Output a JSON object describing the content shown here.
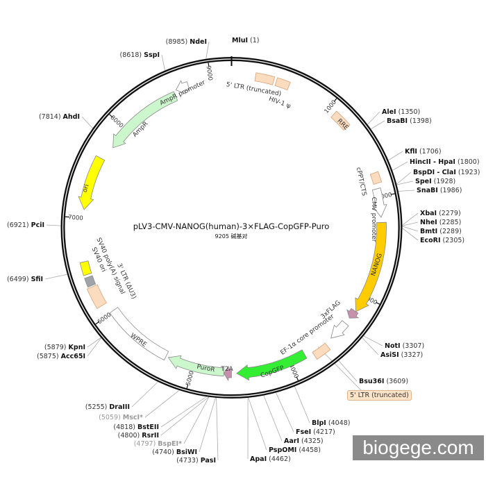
{
  "plasmid": {
    "title": "pLV3-CMV-NANOG(human)-3×FLAG-CopGFP-Puro",
    "subtitle": "9205 碱基对",
    "total_bp": 9205,
    "tick_labels": [
      "1000",
      "2000",
      "3000",
      "4000",
      "5000",
      "6000",
      "7000",
      "8000",
      "9000"
    ]
  },
  "features": [
    {
      "name": "5' LTR (truncated)",
      "start": 230,
      "end": 409,
      "type": "box",
      "color": "#fbdcbf"
    },
    {
      "name": "HIV-1 ψ",
      "start": 435,
      "end": 563,
      "type": "box",
      "color": "#fbdcbf"
    },
    {
      "name": "RRE",
      "start": 1074,
      "end": 1253,
      "type": "box",
      "color": "#fbdcbf"
    },
    {
      "name": "cPPT/CTS",
      "start": 1764,
      "end": 1867,
      "type": "box",
      "color": "#fbdcbf"
    },
    {
      "name": "CMV promoter",
      "start": 1918,
      "end": 2199,
      "type": "arrow",
      "dir": "cw",
      "color": "#ffffff"
    },
    {
      "name": "NANOG",
      "start": 2250,
      "end": 3171,
      "type": "arrow",
      "dir": "cw",
      "color": "#ffcc00"
    },
    {
      "name": "3xFLAG",
      "start": 3171,
      "end": 3260,
      "type": "arrow",
      "dir": "cw",
      "color": "#c690ad"
    },
    {
      "name": "EF-1α core promoter",
      "start": 3324,
      "end": 3529,
      "type": "arrow",
      "dir": "cw",
      "color": "#ffffff"
    },
    {
      "name": "5' LTR (truncated)",
      "start": 3605,
      "end": 3759,
      "type": "box",
      "color": "#fbdcbf"
    },
    {
      "name": "CopGFP",
      "start": 3836,
      "end": 4551,
      "type": "arrow",
      "dir": "cw",
      "color": "#33ee33"
    },
    {
      "name": "T2A",
      "start": 4603,
      "end": 4680,
      "type": "arrow",
      "dir": "cw",
      "color": "#c690ad"
    },
    {
      "name": "PuroR",
      "start": 4680,
      "end": 5267,
      "type": "arrow",
      "dir": "cw",
      "color": "#ccf7cc"
    },
    {
      "name": "WPRE",
      "start": 5293,
      "end": 6009,
      "type": "box",
      "color": "#ffffff"
    },
    {
      "name": "3' LTR (ΔU3)",
      "start": 6111,
      "end": 6316,
      "type": "box",
      "color": "#fbdcbf"
    },
    {
      "name": "SV40 ori",
      "start": 6329,
      "end": 6418,
      "type": "box",
      "color": "#a0a4a8"
    },
    {
      "name": "SV40 poly(A) signal",
      "start": 6444,
      "end": 6571,
      "type": "box",
      "color": "#ffff00"
    },
    {
      "name": "ori",
      "start": 7083,
      "end": 7620,
      "type": "arrow",
      "dir": "ccw",
      "color": "#ffff00"
    },
    {
      "name": "AmpR",
      "start": 7773,
      "end": 8617,
      "type": "arrow",
      "dir": "ccw",
      "color": "#ccf7cc"
    },
    {
      "name": "AmpR promoter",
      "start": 8643,
      "end": 8771,
      "type": "arrow",
      "dir": "ccw",
      "color": "#ffffff"
    }
  ],
  "sites": [
    {
      "name": "MluI",
      "pos": 1
    },
    {
      "name": "NdeI",
      "pos": 8985
    },
    {
      "name": "SspI",
      "pos": 8618
    },
    {
      "name": "AhdI",
      "pos": 7814
    },
    {
      "name": "PciI",
      "pos": 6921
    },
    {
      "name": "SfiI",
      "pos": 6499
    },
    {
      "name": "KpnI",
      "pos": 5879
    },
    {
      "name": "Acc65I",
      "pos": 5875
    },
    {
      "name": "DraIII",
      "pos": 5255
    },
    {
      "name": "MscI*",
      "pos": 5059,
      "gray": true
    },
    {
      "name": "BstEII",
      "pos": 4818
    },
    {
      "name": "RsrII",
      "pos": 4800
    },
    {
      "name": "BspEI*",
      "pos": 4797,
      "gray": true
    },
    {
      "name": "BsiWI",
      "pos": 4740
    },
    {
      "name": "PasI",
      "pos": 4733
    },
    {
      "name": "ApaI",
      "pos": 4462
    },
    {
      "name": "PspOMI",
      "pos": 4458
    },
    {
      "name": "AarI",
      "pos": 4325
    },
    {
      "name": "FseI",
      "pos": 4217
    },
    {
      "name": "BlpI",
      "pos": 4048
    },
    {
      "name": "Bsu36I",
      "pos": 3609
    },
    {
      "name": "NotI",
      "pos": 3307
    },
    {
      "name": "AsiSI",
      "pos": 3327
    },
    {
      "name": "XbaI",
      "pos": 2279
    },
    {
      "name": "NheI",
      "pos": 2285
    },
    {
      "name": "BmtI",
      "pos": 2289
    },
    {
      "name": "EcoRI",
      "pos": 2305
    },
    {
      "name": "AleI",
      "pos": 1350
    },
    {
      "name": "BsaBI",
      "pos": 1398
    },
    {
      "name": "KflI",
      "pos": 1706
    },
    {
      "name": "HincII - HpaI",
      "pos": 1800
    },
    {
      "name": "BspDI - ClaI",
      "pos": 1923
    },
    {
      "name": "SpeI",
      "pos": 1928
    },
    {
      "name": "SnaBI",
      "pos": 1986
    }
  ],
  "callout": {
    "label": "5' LTR (truncated)"
  },
  "watermark": "biogege.com"
}
